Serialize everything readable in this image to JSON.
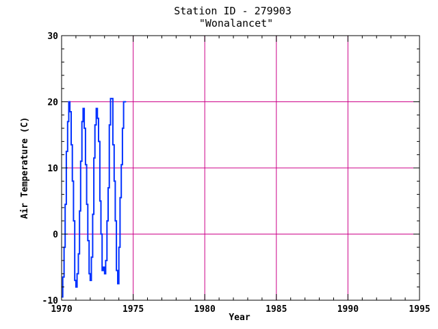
{
  "chart_data": {
    "type": "line",
    "title_line1": "Station ID - 279903",
    "title_line2": "\"Wonalancet\"",
    "xlabel": "Year",
    "ylabel": "Air Temperature (C)",
    "xlim": [
      1970,
      1995
    ],
    "ylim": [
      -10,
      30
    ],
    "x_ticks": [
      1970,
      1975,
      1980,
      1985,
      1990,
      1995
    ],
    "y_ticks": [
      -10,
      0,
      10,
      20,
      30
    ],
    "x_tick_labels": [
      "1970",
      "1975",
      "1980",
      "1985",
      "1990",
      "1995"
    ],
    "y_tick_labels": [
      "-10",
      "0",
      "10",
      "20",
      "30"
    ],
    "grid": true,
    "colors": {
      "series": "#0030ff",
      "grid": "#cc0088",
      "axis": "#000000",
      "background": "#ffffff"
    },
    "series": [
      {
        "x": [
          1970.0,
          1970.08,
          1970.17,
          1970.25,
          1970.33,
          1970.42,
          1970.5,
          1970.58,
          1970.67,
          1970.75,
          1970.83,
          1970.92,
          1971.0,
          1971.08,
          1971.17,
          1971.25,
          1971.33,
          1971.42,
          1971.5,
          1971.58,
          1971.67,
          1971.75,
          1971.83,
          1971.92,
          1972.0,
          1972.08,
          1972.17,
          1972.25,
          1972.33,
          1972.42,
          1972.5,
          1972.58,
          1972.67,
          1972.75,
          1972.83,
          1972.92,
          1973.0,
          1973.08,
          1973.17,
          1973.25,
          1973.33,
          1973.42,
          1973.5,
          1973.58,
          1973.67,
          1973.75,
          1973.83,
          1973.92,
          1974.0,
          1974.08,
          1974.17,
          1974.25,
          1974.33,
          1974.42,
          1974.5
        ],
        "values": [
          -9.5,
          -6.5,
          -2.0,
          4.5,
          12.5,
          17.0,
          20.0,
          18.5,
          13.5,
          8.0,
          2.0,
          -7.0,
          -8.0,
          -6.0,
          -3.0,
          3.5,
          11.0,
          17.0,
          19.0,
          16.0,
          10.5,
          4.5,
          -1.0,
          -6.0,
          -7.0,
          -3.5,
          3.0,
          11.5,
          16.5,
          19.0,
          17.5,
          14.0,
          5.0,
          0.0,
          -5.5,
          -5.0,
          -6.0,
          -4.0,
          2.0,
          7.0,
          16.5,
          20.5,
          20.5,
          13.5,
          8.0,
          2.0,
          -5.5,
          -7.5,
          -2.0,
          5.5,
          10.5,
          16.0,
          20.0,
          20.0,
          20.0
        ]
      }
    ]
  }
}
